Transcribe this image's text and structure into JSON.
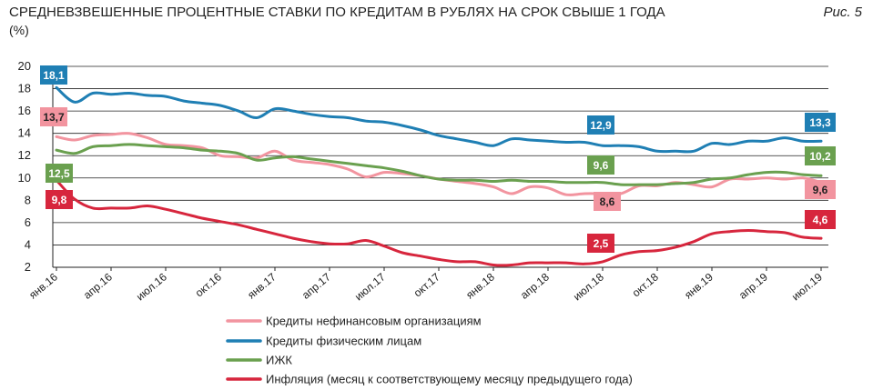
{
  "header": {
    "title": "СРЕДНЕВЗВЕШЕННЫЕ ПРОЦЕНТНЫЕ СТАВКИ ПО КРЕДИТАМ В РУБЛЯХ НА СРОК СВЫШЕ 1 ГОДА",
    "unit": "(%)",
    "figure": "Рис. 5"
  },
  "chart_data": {
    "type": "line",
    "ylim": [
      2,
      20
    ],
    "yticks": [
      "2",
      "4",
      "6",
      "8",
      "10",
      "12",
      "14",
      "16",
      "18",
      "20"
    ],
    "xticks": [
      "янв.16",
      "апр.16",
      "июл.16",
      "окт.16",
      "янв.17",
      "апр.17",
      "июл.17",
      "окт.17",
      "янв.18",
      "апр.18",
      "июл.18",
      "окт.18",
      "янв.19",
      "апр.19",
      "июл.19"
    ],
    "grid": true,
    "legend_position": "bottom",
    "x": [
      "янв.16",
      "фев.16",
      "мар.16",
      "апр.16",
      "май.16",
      "июн.16",
      "июл.16",
      "авг.16",
      "сен.16",
      "окт.16",
      "ноя.16",
      "дек.16",
      "янв.17",
      "фев.17",
      "мар.17",
      "апр.17",
      "май.17",
      "июн.17",
      "июл.17",
      "авг.17",
      "сен.17",
      "окт.17",
      "ноя.17",
      "дек.17",
      "янв.18",
      "фев.18",
      "мар.18",
      "апр.18",
      "май.18",
      "июн.18",
      "июл.18",
      "авг.18",
      "сен.18",
      "окт.18",
      "ноя.18",
      "дек.18",
      "янв.19",
      "фев.19",
      "мар.19",
      "апр.19",
      "май.19",
      "июн.19",
      "июл.19"
    ],
    "series": [
      {
        "name": "Кредиты нефинансовым организациям",
        "color": "#f2949f",
        "values": [
          13.7,
          13.4,
          13.8,
          13.9,
          14.0,
          13.6,
          13.0,
          12.9,
          12.7,
          12.0,
          11.9,
          11.8,
          12.4,
          11.6,
          11.4,
          11.2,
          10.8,
          10.1,
          10.5,
          10.4,
          10.2,
          9.9,
          9.7,
          9.5,
          9.2,
          8.6,
          9.2,
          9.1,
          8.5,
          8.6,
          8.6,
          8.6,
          9.3,
          9.3,
          9.6,
          9.4,
          9.2,
          9.9,
          9.9,
          10.0,
          9.9,
          10.0,
          9.6
        ],
        "start_label": "13,7",
        "end_label": "9,6",
        "mid_label": "8,6"
      },
      {
        "name": "Кредиты физическим лицам",
        "color": "#1f7fb4",
        "values": [
          18.1,
          16.8,
          17.6,
          17.5,
          17.6,
          17.4,
          17.3,
          16.9,
          16.7,
          16.5,
          16.0,
          15.4,
          16.2,
          16.0,
          15.7,
          15.5,
          15.4,
          15.1,
          15.0,
          14.7,
          14.3,
          13.8,
          13.5,
          13.2,
          12.9,
          13.5,
          13.4,
          13.3,
          13.2,
          13.2,
          12.9,
          12.9,
          12.8,
          12.4,
          12.4,
          12.4,
          13.1,
          13.0,
          13.3,
          13.3,
          13.6,
          13.3,
          13.3
        ],
        "start_label": "18,1",
        "end_label": "13,3",
        "mid_label": "12,9"
      },
      {
        "name": "ИЖК",
        "color": "#6aa04f",
        "values": [
          12.5,
          12.2,
          12.8,
          12.9,
          13.0,
          12.9,
          12.8,
          12.7,
          12.5,
          12.4,
          12.2,
          11.6,
          11.8,
          11.9,
          11.7,
          11.5,
          11.3,
          11.1,
          10.9,
          10.6,
          10.2,
          9.9,
          9.8,
          9.8,
          9.7,
          9.8,
          9.7,
          9.7,
          9.6,
          9.6,
          9.6,
          9.4,
          9.4,
          9.4,
          9.5,
          9.6,
          9.9,
          10.0,
          10.3,
          10.5,
          10.5,
          10.3,
          10.2
        ],
        "start_label": "12,5",
        "end_label": "10,2",
        "mid_label": "9,6"
      },
      {
        "name": "Инфляция (месяц к соответствующему месяцу предыдущего года)",
        "color": "#d7263d",
        "values": [
          9.8,
          8.1,
          7.3,
          7.3,
          7.3,
          7.5,
          7.2,
          6.8,
          6.4,
          6.1,
          5.8,
          5.4,
          5.0,
          4.6,
          4.3,
          4.1,
          4.1,
          4.4,
          3.9,
          3.3,
          3.0,
          2.7,
          2.5,
          2.5,
          2.2,
          2.2,
          2.4,
          2.4,
          2.4,
          2.3,
          2.5,
          3.1,
          3.4,
          3.5,
          3.8,
          4.3,
          5.0,
          5.2,
          5.3,
          5.2,
          5.1,
          4.7,
          4.6
        ],
        "start_label": "9,8",
        "end_label": "4,6",
        "mid_label": "2,5"
      }
    ]
  },
  "legend": {
    "items": [
      {
        "label": "Кредиты нефинансовым организациям",
        "color": "#f2949f"
      },
      {
        "label": "Кредиты физическим лицам",
        "color": "#1f7fb4"
      },
      {
        "label": "ИЖК",
        "color": "#6aa04f"
      },
      {
        "label": "Инфляция (месяц к соответствующему месяцу предыдущего года)",
        "color": "#d7263d"
      }
    ]
  }
}
